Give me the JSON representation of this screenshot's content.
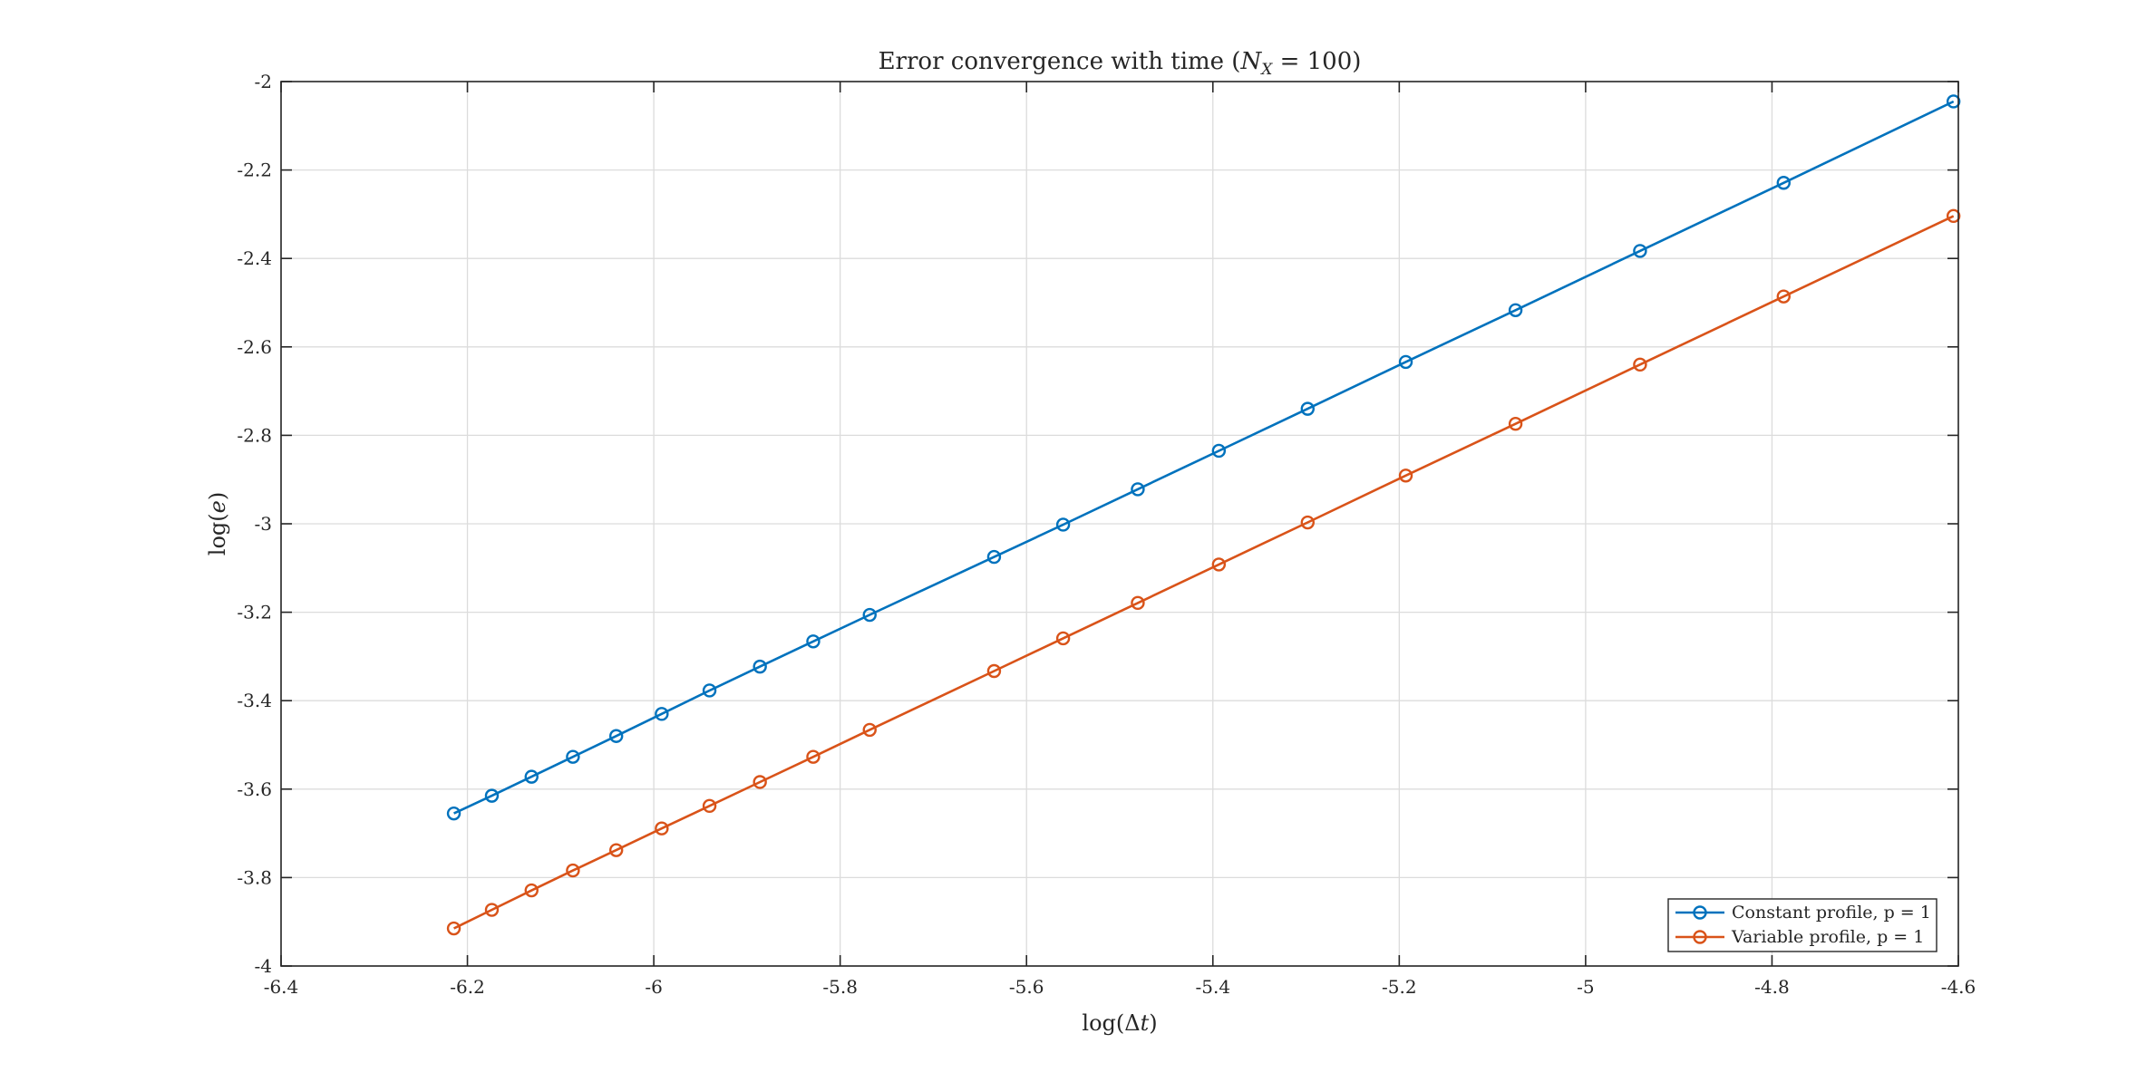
{
  "chart_data": {
    "type": "line",
    "title": "Error convergence with time (N_X = 100)",
    "title_parts": {
      "prefix": "Error convergence with time (",
      "var": "N",
      "sub": "X",
      "suffix": " = 100)"
    },
    "xlabel": "log(Δt)",
    "xlabel_parts": {
      "prefix": "log(Δ",
      "var": "t",
      "suffix": ")"
    },
    "ylabel": "log(e)",
    "ylabel_parts": {
      "prefix": "log(",
      "var": "e",
      "suffix": ")"
    },
    "xlim": [
      -6.4,
      -4.6
    ],
    "ylim": [
      -4,
      -2
    ],
    "x_ticks": [
      -6.4,
      -6.2,
      -6,
      -5.8,
      -5.6,
      -5.4,
      -5.2,
      -5,
      -4.8,
      -4.6
    ],
    "y_ticks": [
      -2,
      -2.2,
      -2.4,
      -2.6,
      -2.8,
      -3,
      -3.2,
      -3.4,
      -3.6,
      -3.8,
      -4
    ],
    "x_tick_labels": [
      "-6.4",
      "-6.2",
      "-6",
      "-5.8",
      "-5.6",
      "-5.4",
      "-5.2",
      "-5",
      "-4.8",
      "-4.6"
    ],
    "y_tick_labels": [
      "-2",
      "-2.2",
      "-2.4",
      "-2.6",
      "-2.8",
      "-3",
      "-3.2",
      "-3.4",
      "-3.6",
      "-3.8",
      "-4"
    ],
    "grid": true,
    "legend_position": "bottom-right",
    "x": [
      -6.2146,
      -6.1738,
      -6.1312,
      -6.0868,
      -6.0403,
      -5.9915,
      -5.9402,
      -5.8861,
      -5.8289,
      -5.7683,
      -5.6348,
      -5.5607,
      -5.4806,
      -5.3936,
      -5.2983,
      -5.193,
      -5.0752,
      -4.9416,
      -4.7875,
      -4.6052
    ],
    "series": [
      {
        "name": "Constant profile, p = 1",
        "color": "#0072BD",
        "marker": "circle",
        "values": [
          -3.655,
          -3.615,
          -3.572,
          -3.527,
          -3.48,
          -3.43,
          -3.377,
          -3.323,
          -3.266,
          -3.206,
          -3.075,
          -3.002,
          -2.922,
          -2.835,
          -2.74,
          -2.634,
          -2.517,
          -2.383,
          -2.229,
          -2.045
        ]
      },
      {
        "name": "Variable profile, p = 1",
        "color": "#D95319",
        "marker": "circle",
        "values": [
          -3.915,
          -3.873,
          -3.829,
          -3.784,
          -3.738,
          -3.689,
          -3.638,
          -3.584,
          -3.527,
          -3.466,
          -3.333,
          -3.259,
          -3.179,
          -3.092,
          -2.997,
          -2.891,
          -2.774,
          -2.64,
          -2.486,
          -2.304
        ]
      }
    ]
  }
}
